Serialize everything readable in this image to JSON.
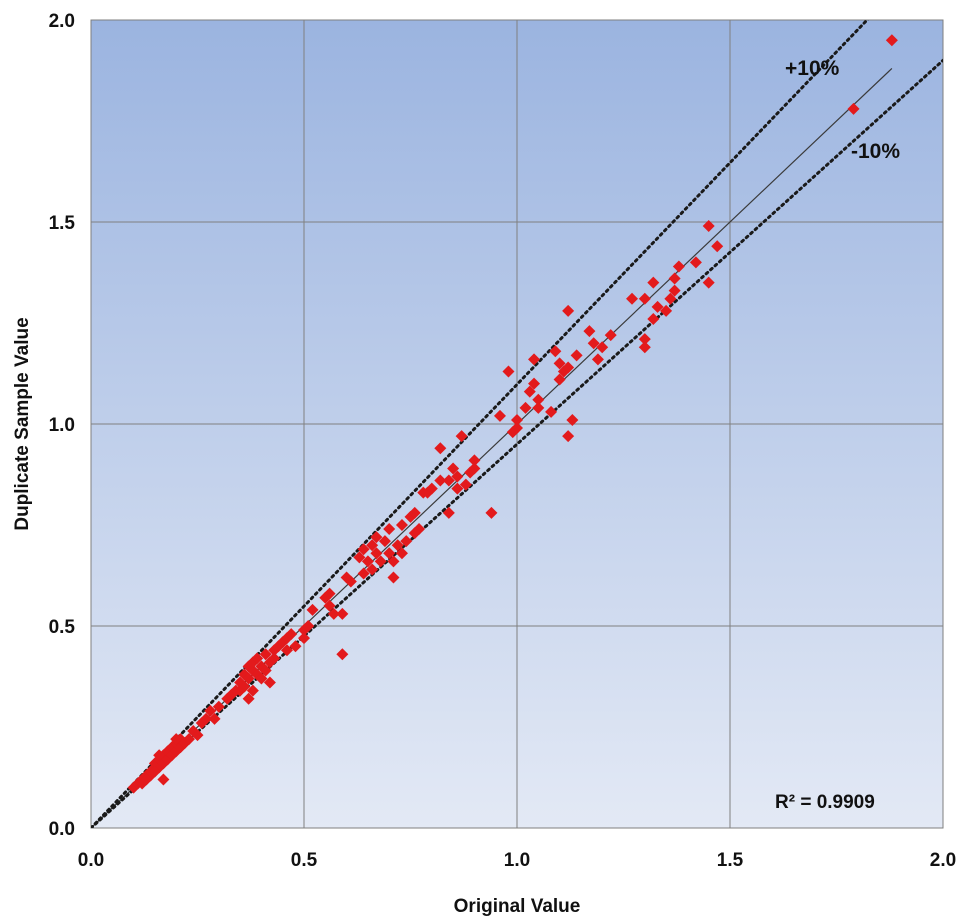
{
  "chart_data": {
    "type": "scatter",
    "xlabel": "Original Value",
    "ylabel": "Duplicate Sample Value",
    "xlim": [
      0,
      2
    ],
    "ylim": [
      0,
      2
    ],
    "x_ticks": [
      "0.0",
      "0.5",
      "1.0",
      "1.5",
      "2.0"
    ],
    "y_ticks": [
      "0.0",
      "0.5",
      "1.0",
      "1.5",
      "2.0"
    ],
    "grid": true,
    "background_gradient": [
      "#9bb4e0",
      "#e3e9f5"
    ],
    "marker_color": "#e31a1c",
    "marker_shape": "diamond",
    "annotations": {
      "plus": "+10%",
      "minus": "-10%",
      "r_squared": "R² = 0.9909"
    },
    "lines": [
      {
        "name": "trend",
        "style": "solid",
        "x": [
          0,
          1.88
        ],
        "y": [
          0,
          1.88
        ]
      },
      {
        "name": "+10%",
        "style": "dotted",
        "x": [
          0,
          1.84
        ],
        "y": [
          0,
          2.02
        ]
      },
      {
        "name": "-10%",
        "style": "dotted",
        "x": [
          0,
          2.0
        ],
        "y": [
          0,
          1.9
        ]
      }
    ],
    "series": [
      {
        "points": [
          [
            0.1,
            0.1
          ],
          [
            0.11,
            0.11
          ],
          [
            0.12,
            0.11
          ],
          [
            0.12,
            0.12
          ],
          [
            0.13,
            0.13
          ],
          [
            0.14,
            0.13
          ],
          [
            0.14,
            0.14
          ],
          [
            0.15,
            0.15
          ],
          [
            0.15,
            0.16
          ],
          [
            0.16,
            0.15
          ],
          [
            0.16,
            0.17
          ],
          [
            0.17,
            0.16
          ],
          [
            0.17,
            0.18
          ],
          [
            0.18,
            0.17
          ],
          [
            0.18,
            0.19
          ],
          [
            0.19,
            0.18
          ],
          [
            0.19,
            0.2
          ],
          [
            0.2,
            0.19
          ],
          [
            0.2,
            0.21
          ],
          [
            0.21,
            0.2
          ],
          [
            0.21,
            0.22
          ],
          [
            0.22,
            0.21
          ],
          [
            0.23,
            0.22
          ],
          [
            0.24,
            0.24
          ],
          [
            0.25,
            0.23
          ],
          [
            0.26,
            0.26
          ],
          [
            0.27,
            0.27
          ],
          [
            0.28,
            0.29
          ],
          [
            0.29,
            0.27
          ],
          [
            0.3,
            0.3
          ],
          [
            0.17,
            0.12
          ],
          [
            0.16,
            0.18
          ],
          [
            0.15,
            0.14
          ],
          [
            0.13,
            0.12
          ],
          [
            0.2,
            0.22
          ],
          [
            0.32,
            0.32
          ],
          [
            0.33,
            0.33
          ],
          [
            0.34,
            0.34
          ],
          [
            0.35,
            0.36
          ],
          [
            0.36,
            0.35
          ],
          [
            0.36,
            0.38
          ],
          [
            0.37,
            0.37
          ],
          [
            0.37,
            0.4
          ],
          [
            0.38,
            0.39
          ],
          [
            0.38,
            0.41
          ],
          [
            0.39,
            0.38
          ],
          [
            0.39,
            0.42
          ],
          [
            0.4,
            0.4
          ],
          [
            0.4,
            0.37
          ],
          [
            0.41,
            0.43
          ],
          [
            0.41,
            0.39
          ],
          [
            0.42,
            0.41
          ],
          [
            0.42,
            0.36
          ],
          [
            0.43,
            0.44
          ],
          [
            0.43,
            0.42
          ],
          [
            0.44,
            0.45
          ],
          [
            0.45,
            0.46
          ],
          [
            0.46,
            0.44
          ],
          [
            0.46,
            0.47
          ],
          [
            0.47,
            0.48
          ],
          [
            0.48,
            0.45
          ],
          [
            0.37,
            0.32
          ],
          [
            0.38,
            0.34
          ],
          [
            0.35,
            0.34
          ],
          [
            0.5,
            0.49
          ],
          [
            0.51,
            0.5
          ],
          [
            0.52,
            0.54
          ],
          [
            0.55,
            0.57
          ],
          [
            0.56,
            0.58
          ],
          [
            0.56,
            0.55
          ],
          [
            0.57,
            0.53
          ],
          [
            0.59,
            0.53
          ],
          [
            0.59,
            0.43
          ],
          [
            0.5,
            0.47
          ],
          [
            0.63,
            0.67
          ],
          [
            0.64,
            0.69
          ],
          [
            0.64,
            0.63
          ],
          [
            0.65,
            0.66
          ],
          [
            0.66,
            0.7
          ],
          [
            0.66,
            0.64
          ],
          [
            0.67,
            0.68
          ],
          [
            0.67,
            0.72
          ],
          [
            0.68,
            0.66
          ],
          [
            0.69,
            0.71
          ],
          [
            0.7,
            0.68
          ],
          [
            0.7,
            0.74
          ],
          [
            0.71,
            0.66
          ],
          [
            0.71,
            0.62
          ],
          [
            0.72,
            0.7
          ],
          [
            0.73,
            0.75
          ],
          [
            0.73,
            0.68
          ],
          [
            0.74,
            0.71
          ],
          [
            0.75,
            0.77
          ],
          [
            0.76,
            0.78
          ],
          [
            0.76,
            0.73
          ],
          [
            0.77,
            0.74
          ],
          [
            0.78,
            0.83
          ],
          [
            0.79,
            0.83
          ],
          [
            0.8,
            0.84
          ],
          [
            0.82,
            0.86
          ],
          [
            0.82,
            0.94
          ],
          [
            0.84,
            0.78
          ],
          [
            0.84,
            0.86
          ],
          [
            0.85,
            0.89
          ],
          [
            0.86,
            0.87
          ],
          [
            0.86,
            0.84
          ],
          [
            0.87,
            0.97
          ],
          [
            0.88,
            0.85
          ],
          [
            0.89,
            0.88
          ],
          [
            0.9,
            0.91
          ],
          [
            0.9,
            0.89
          ],
          [
            0.94,
            0.78
          ],
          [
            0.61,
            0.61
          ],
          [
            0.6,
            0.62
          ],
          [
            0.96,
            1.02
          ],
          [
            0.98,
            1.13
          ],
          [
            0.99,
            0.98
          ],
          [
            1.0,
            1.01
          ],
          [
            1.0,
            0.99
          ],
          [
            1.02,
            1.04
          ],
          [
            1.03,
            1.08
          ],
          [
            1.04,
            1.1
          ],
          [
            1.04,
            1.16
          ],
          [
            1.05,
            1.06
          ],
          [
            1.05,
            1.04
          ],
          [
            1.08,
            1.03
          ],
          [
            1.09,
            1.18
          ],
          [
            1.1,
            1.15
          ],
          [
            1.1,
            1.11
          ],
          [
            1.11,
            1.13
          ],
          [
            1.12,
            1.14
          ],
          [
            1.12,
            0.97
          ],
          [
            1.13,
            1.01
          ],
          [
            1.12,
            1.28
          ],
          [
            1.14,
            1.17
          ],
          [
            1.17,
            1.23
          ],
          [
            1.18,
            1.2
          ],
          [
            1.19,
            1.16
          ],
          [
            1.2,
            1.19
          ],
          [
            1.22,
            1.22
          ],
          [
            1.27,
            1.31
          ],
          [
            1.3,
            1.31
          ],
          [
            1.3,
            1.19
          ],
          [
            1.3,
            1.21
          ],
          [
            1.32,
            1.26
          ],
          [
            1.32,
            1.35
          ],
          [
            1.33,
            1.29
          ],
          [
            1.35,
            1.28
          ],
          [
            1.36,
            1.31
          ],
          [
            1.37,
            1.33
          ],
          [
            1.37,
            1.36
          ],
          [
            1.38,
            1.39
          ],
          [
            1.42,
            1.4
          ],
          [
            1.45,
            1.49
          ],
          [
            1.45,
            1.35
          ],
          [
            1.47,
            1.44
          ],
          [
            1.79,
            1.78
          ],
          [
            1.88,
            1.95
          ]
        ]
      }
    ]
  }
}
